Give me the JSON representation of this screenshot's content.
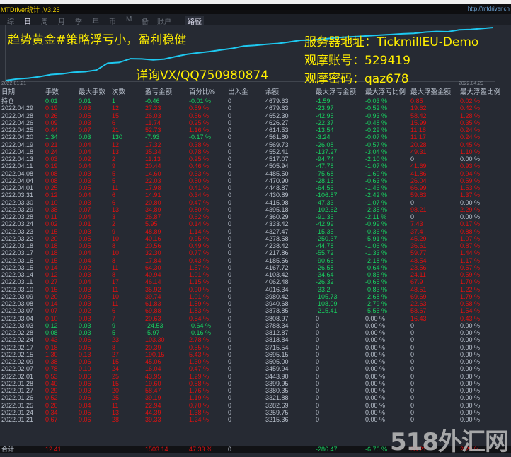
{
  "window": {
    "title": "MTDriver统计 ,V3.25",
    "url": "http://mtdriver.cn"
  },
  "toolbar": {
    "tabs": [
      "综",
      "日",
      "周",
      "月",
      "季",
      "年",
      "币",
      "M",
      "备",
      "账户"
    ],
    "active": "日",
    "path_button": "路径"
  },
  "chart": {
    "line_color": "#1ec8f0",
    "start_date": "2022.01.21",
    "end_date": "2022.04.29",
    "overlay": {
      "strategy": "趋势黄金#策略浮亏小，盈利稳健",
      "contact": "详询VX/QQ750980874",
      "server": "服务器地址：TickmillEU-Demo",
      "account": "观摩账号：529419",
      "password": "观摩密码：qaz678"
    }
  },
  "colors": {
    "profit": "#e01010",
    "loss": "#18d060",
    "neutral": "#b8c0cc"
  },
  "table": {
    "headers": [
      "日期",
      "手数",
      "最大手数",
      "次数",
      "盈亏金额",
      "百分比%",
      "出入金",
      "余额",
      "最大浮亏金额",
      "最大浮亏比例",
      "最大浮盈金额",
      "最大浮盈比例"
    ],
    "rows": [
      [
        "持仓",
        "0.01",
        "0.01",
        "1",
        "-0.46",
        "-0.01 %",
        "0",
        "4679.63",
        "-1.59",
        "-0.03 %",
        "0.85",
        "0.02 %"
      ],
      [
        "2022.04.29",
        "0.19",
        "0.03",
        "12",
        "27.33",
        "0.59 %",
        "0",
        "4679.63",
        "-23.97",
        "-0.52 %",
        "19.62",
        "0.42 %"
      ],
      [
        "2022.04.28",
        "0.26",
        "0.05",
        "15",
        "26.03",
        "0.56 %",
        "0",
        "4652.30",
        "-42.95",
        "-0.93 %",
        "58.42",
        "1.28 %"
      ],
      [
        "2022.04.26",
        "0.09",
        "0.03",
        "6",
        "11.74",
        "0.25 %",
        "0",
        "4626.27",
        "-22.37",
        "-0.48 %",
        "15.99",
        "0.35 %"
      ],
      [
        "2022.04.25",
        "0.44",
        "0.07",
        "21",
        "52.73",
        "1.16 %",
        "0",
        "4614.53",
        "-13.54",
        "-0.29 %",
        "11.18",
        "0.24 %"
      ],
      [
        "2022.04.20",
        "1.34",
        "0.03",
        "130",
        "-7.93",
        "-0.17 %",
        "0",
        "4561.80",
        "-3.24",
        "-0.07 %",
        "11.17",
        "0.24 %"
      ],
      [
        "2022.04.19",
        "0.21",
        "0.04",
        "12",
        "17.32",
        "0.38 %",
        "0",
        "4569.73",
        "-26.08",
        "-0.57 %",
        "20.28",
        "0.45 %"
      ],
      [
        "2022.04.18",
        "0.24",
        "0.04",
        "13",
        "35.34",
        "0.78 %",
        "0",
        "4552.41",
        "-137.27",
        "-3.04 %",
        "49.31",
        "1.10 %"
      ],
      [
        "2022.04.13",
        "0.03",
        "0.02",
        "2",
        "11.13",
        "0.25 %",
        "0",
        "4517.07",
        "-94.74",
        "-2.10 %",
        "0",
        "0.00 %"
      ],
      [
        "2022.04.11",
        "0.19",
        "0.04",
        "9",
        "20.44",
        "0.46 %",
        "0",
        "4505.94",
        "-47.78",
        "-1.07 %",
        "41.69",
        "0.93 %"
      ],
      [
        "2022.04.08",
        "0.08",
        "0.03",
        "5",
        "14.60",
        "0.33 %",
        "0",
        "4485.50",
        "-75.68",
        "-1.69 %",
        "41.86",
        "0.94 %"
      ],
      [
        "2022.04.04",
        "0.08",
        "0.03",
        "5",
        "22.03",
        "0.50 %",
        "0",
        "4470.90",
        "-28.13",
        "-0.63 %",
        "26.04",
        "0.59 %"
      ],
      [
        "2022.04.01",
        "0.25",
        "0.05",
        "11",
        "17.98",
        "0.41 %",
        "0",
        "4448.87",
        "-64.56",
        "-1.46 %",
        "66.99",
        "1.53 %"
      ],
      [
        "2022.03.31",
        "0.12",
        "0.04",
        "6",
        "14.91",
        "0.34 %",
        "0",
        "4430.89",
        "-106.87",
        "-2.42 %",
        "59.83",
        "1.37 %"
      ],
      [
        "2022.03.30",
        "0.10",
        "0.03",
        "6",
        "20.80",
        "0.47 %",
        "0",
        "4415.98",
        "-47.33",
        "-1.07 %",
        "0",
        "0.00 %"
      ],
      [
        "2022.03.29",
        "0.38",
        "0.07",
        "13",
        "34.89",
        "0.80 %",
        "0",
        "4395.18",
        "-102.62",
        "-2.35 %",
        "98.21",
        "2.29 %"
      ],
      [
        "2022.03.28",
        "0.11",
        "0.04",
        "3",
        "26.87",
        "0.62 %",
        "0",
        "4360.29",
        "-91.36",
        "-2.11 %",
        "0",
        "0.00 %"
      ],
      [
        "2022.03.24",
        "0.02",
        "0.01",
        "2",
        "5.95",
        "0.14 %",
        "0",
        "4333.42",
        "-42.99",
        "-0.99 %",
        "7.43",
        "0.17 %"
      ],
      [
        "2022.03.23",
        "0.15",
        "0.03",
        "9",
        "48.89",
        "1.14 %",
        "0",
        "4327.47",
        "-15.35",
        "-0.36 %",
        "37.4",
        "0.88 %"
      ],
      [
        "2022.03.22",
        "0.20",
        "0.05",
        "10",
        "40.16",
        "0.95 %",
        "0",
        "4278.58",
        "-250.37",
        "-5.91 %",
        "45.29",
        "1.07 %"
      ],
      [
        "2022.03.18",
        "0.18",
        "0.05",
        "8",
        "20.56",
        "0.49 %",
        "0",
        "4238.42",
        "-44.78",
        "-1.06 %",
        "36.61",
        "0.87 %"
      ],
      [
        "2022.03.17",
        "0.18",
        "0.04",
        "10",
        "32.30",
        "0.77 %",
        "0",
        "4217.86",
        "-55.72",
        "-1.33 %",
        "59.77",
        "1.44 %"
      ],
      [
        "2022.03.16",
        "0.15",
        "0.04",
        "8",
        "17.84",
        "0.43 %",
        "0",
        "4185.56",
        "-90.66",
        "-2.18 %",
        "48.54",
        "1.17 %"
      ],
      [
        "2022.03.15",
        "0.14",
        "0.02",
        "11",
        "64.30",
        "1.57 %",
        "0",
        "4167.72",
        "-26.58",
        "-0.64 %",
        "23.56",
        "0.57 %"
      ],
      [
        "2022.03.14",
        "0.12",
        "0.03",
        "8",
        "40.94",
        "1.01 %",
        "0",
        "4103.42",
        "-34.64",
        "-0.85 %",
        "24.11",
        "0.59 %"
      ],
      [
        "2022.03.11",
        "0.27",
        "0.04",
        "17",
        "46.14",
        "1.15 %",
        "0",
        "4062.48",
        "-26.32",
        "-0.65 %",
        "67.9",
        "1.70 %"
      ],
      [
        "2022.03.10",
        "0.15",
        "0.03",
        "11",
        "35.92",
        "0.90 %",
        "0",
        "4016.34",
        "-33.2",
        "-0.83 %",
        "48.51",
        "1.22 %"
      ],
      [
        "2022.03.09",
        "0.20",
        "0.05",
        "10",
        "39.74",
        "1.01 %",
        "0",
        "3980.42",
        "-105.73",
        "-2.68 %",
        "69.69",
        "1.79 %"
      ],
      [
        "2022.03.08",
        "0.14",
        "0.03",
        "11",
        "61.83",
        "1.59 %",
        "0",
        "3940.68",
        "-108.09",
        "-2.79 %",
        "22.63",
        "0.58 %"
      ],
      [
        "2022.03.07",
        "0.07",
        "0.02",
        "6",
        "69.88",
        "1.83 %",
        "0",
        "3878.85",
        "-215.41",
        "-5.55 %",
        "58.67",
        "1.54 %"
      ],
      [
        "2022.03.04",
        "0.10",
        "0.03",
        "7",
        "20.63",
        "0.54 %",
        "0",
        "3808.97",
        "0",
        "0.00 %",
        "16.43",
        "0.43 %"
      ],
      [
        "2022.03.03",
        "0.12",
        "0.03",
        "9",
        "-24.53",
        "-0.64 %",
        "0",
        "3788.34",
        "0",
        "0.00 %",
        "0",
        "0.00 %"
      ],
      [
        "2022.02.28",
        "0.08",
        "0.03",
        "5",
        "-5.97",
        "-0.16 %",
        "0",
        "3812.87",
        "0",
        "0.00 %",
        "0",
        "0.00 %"
      ],
      [
        "2022.02.24",
        "0.43",
        "0.06",
        "23",
        "103.30",
        "2.78 %",
        "0",
        "3818.84",
        "0",
        "0.00 %",
        "0",
        "0.00 %"
      ],
      [
        "2022.02.17",
        "0.18",
        "0.05",
        "8",
        "20.39",
        "0.55 %",
        "0",
        "3715.54",
        "0",
        "0.00 %",
        "0",
        "0.00 %"
      ],
      [
        "2022.02.15",
        "1.30",
        "0.13",
        "27",
        "190.15",
        "5.43 %",
        "0",
        "3695.15",
        "0",
        "0.00 %",
        "0",
        "0.00 %"
      ],
      [
        "2022.02.09",
        "0.38",
        "0.06",
        "15",
        "45.06",
        "1.30 %",
        "0",
        "3505.00",
        "0",
        "0.00 %",
        "0",
        "0.00 %"
      ],
      [
        "2022.02.07",
        "0.78",
        "0.10",
        "24",
        "16.04",
        "0.47 %",
        "0",
        "3459.94",
        "0",
        "0.00 %",
        "0",
        "0.00 %"
      ],
      [
        "2022.02.01",
        "0.53",
        "0.06",
        "25",
        "43.95",
        "1.29 %",
        "0",
        "3443.90",
        "0",
        "0.00 %",
        "0",
        "0.00 %"
      ],
      [
        "2022.01.28",
        "0.40",
        "0.06",
        "15",
        "19.60",
        "0.58 %",
        "0",
        "3399.95",
        "0",
        "0.00 %",
        "0",
        "0.00 %"
      ],
      [
        "2022.01.27",
        "0.29",
        "0.03",
        "20",
        "58.47",
        "1.76 %",
        "0",
        "3380.35",
        "0",
        "0.00 %",
        "0",
        "0.00 %"
      ],
      [
        "2022.01.26",
        "0.52",
        "0.06",
        "25",
        "39.19",
        "1.19 %",
        "0",
        "3321.88",
        "0",
        "0.00 %",
        "0",
        "0.00 %"
      ],
      [
        "2022.01.25",
        "0.20",
        "0.04",
        "11",
        "22.94",
        "0.70 %",
        "0",
        "3282.69",
        "0",
        "0.00 %",
        "0",
        "0.00 %"
      ],
      [
        "2022.01.24",
        "0.34",
        "0.05",
        "13",
        "44.39",
        "1.38 %",
        "0",
        "3259.75",
        "0",
        "0.00 %",
        "0",
        "0.00 %"
      ],
      [
        "2022.01.21",
        "0.67",
        "0.06",
        "28",
        "39.33",
        "1.24 %",
        "0",
        "3215.36",
        "0",
        "0.00 %",
        "0",
        "0.00 %"
      ]
    ],
    "total": [
      "合计",
      "12.41",
      "",
      "",
      "1503.14",
      "47.33 %",
      "0",
      "",
      "-286.47",
      "-6.76 %",
      "98.21",
      "2.29 %"
    ]
  },
  "watermark": "518外汇网"
}
